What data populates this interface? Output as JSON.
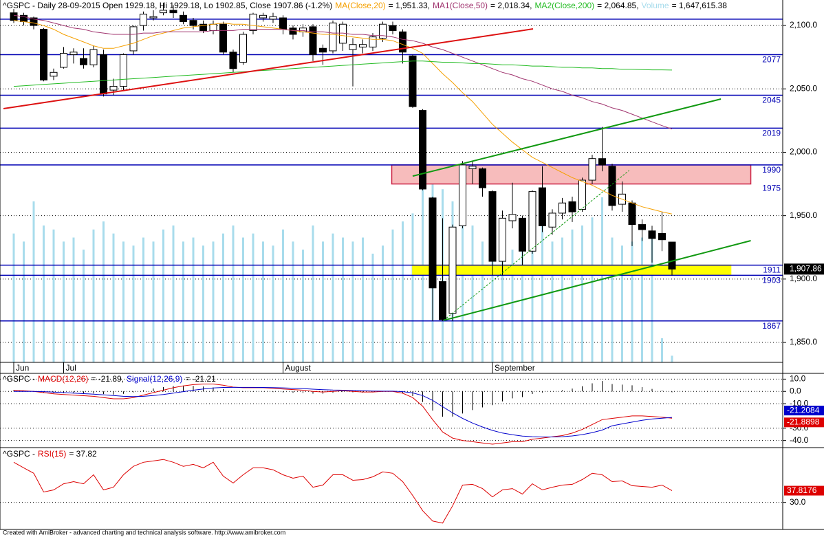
{
  "chart_data": [
    {
      "type": "candlestick",
      "title": "^GSPC - Daily 28-09-2015 Open 1929.18, Hi 1929.18, Lo 1902.85, Close 1907.86 (-1.2%)",
      "categories": [
        "Jun",
        null,
        null,
        null,
        null,
        "Jul",
        null,
        null,
        null,
        null,
        null,
        null,
        null,
        null,
        null,
        null,
        null,
        null,
        null,
        null,
        null,
        null,
        null,
        null,
        null,
        null,
        null,
        "August",
        null,
        null,
        null,
        null,
        null,
        null,
        null,
        null,
        null,
        null,
        null,
        null,
        null,
        null,
        null,
        null,
        null,
        null,
        null,
        null,
        "September",
        null,
        null,
        null,
        null,
        null,
        null,
        null,
        null,
        null,
        null,
        null,
        null,
        null,
        null,
        null,
        null,
        null,
        null
      ],
      "open": [
        2110,
        2108,
        2106,
        2097,
        2060,
        2067,
        2077,
        2074,
        2069,
        2077,
        2049,
        2052,
        2080,
        2100,
        2106,
        2110,
        2112,
        2108,
        2104,
        2101,
        2096,
        2101,
        2079,
        2071,
        2096,
        2106,
        2105,
        2106,
        2098,
        2095,
        2099,
        2082,
        2080,
        2086,
        2081,
        2083,
        2083,
        2090,
        2100,
        2095,
        2076,
        2033,
        1964,
        1898,
        1873,
        1942,
        1987,
        1987,
        1969,
        1914,
        1946,
        1948,
        1922,
        1972,
        1941,
        1952,
        1961,
        1955,
        1978,
        1995,
        1989,
        1959,
        1960,
        1943,
        1938,
        1936,
        1929.18
      ],
      "high": [
        2113,
        2110,
        2107,
        2098,
        2066,
        2083,
        2082,
        2082,
        2084,
        2081,
        2058,
        2078,
        2100,
        2111,
        2112,
        2118,
        2116,
        2111,
        2106,
        2104,
        2104,
        2103,
        2081,
        2095,
        2110,
        2110,
        2110,
        2108,
        2100,
        2101,
        2101,
        2085,
        2104,
        2103,
        2090,
        2089,
        2094,
        2103,
        2103,
        2097,
        2077,
        2034,
        1965,
        1948,
        1943,
        1993,
        1993,
        1988,
        1970,
        1954,
        1976,
        1950,
        1970,
        1989,
        1955,
        1964,
        1965,
        1980,
        1998,
        2020,
        1991,
        1977,
        1962,
        1947,
        1942,
        1953,
        1929.18
      ],
      "low": [
        2102,
        2100,
        2097,
        2056,
        2057,
        2066,
        2070,
        2066,
        2067,
        2044,
        2045,
        2049,
        2077,
        2096,
        2104,
        2108,
        2106,
        2101,
        2097,
        2094,
        2093,
        2077,
        2063,
        2069,
        2093,
        2103,
        2102,
        2093,
        2089,
        2091,
        2072,
        2069,
        2078,
        2080,
        2052,
        2078,
        2080,
        2087,
        2093,
        2070,
        2035,
        1970,
        1867,
        1867,
        1867,
        1940,
        1975,
        1965,
        1903,
        1903,
        1940,
        1911,
        1920,
        1937,
        1935,
        1947,
        1945,
        1953,
        1975,
        1985,
        1954,
        1953,
        1926,
        1930,
        1913,
        1922,
        1902.85
      ],
      "close": [
        2104,
        2103,
        2100,
        2057,
        2063,
        2078,
        2079,
        2069,
        2081,
        2046,
        2052,
        2077,
        2099,
        2109,
        2107,
        2112,
        2110,
        2103,
        2100,
        2096,
        2101,
        2079,
        2066,
        2093,
        2109,
        2108,
        2107,
        2097,
        2093,
        2098,
        2077,
        2079,
        2102,
        2101,
        2085,
        2085,
        2091,
        2101,
        2096,
        2079,
        2036,
        1971,
        1893,
        1868,
        1941,
        1990,
        1989,
        1972,
        1914,
        1948,
        1951,
        1922,
        1969,
        1942,
        1952,
        1960,
        1953,
        1978,
        1995,
        1990,
        1958,
        1967,
        1943,
        1939,
        1932,
        1931,
        1907.86
      ],
      "up_color": "#ffffff",
      "down_color": "#000000",
      "last_label": "1,907.86",
      "ylim": [
        1834.3,
        2120.1
      ],
      "yticks": [
        {
          "value": 1850,
          "label": "1,850.0"
        },
        {
          "value": 1900,
          "label": "1,900.0"
        },
        {
          "value": 1950,
          "label": "1,950.0"
        },
        {
          "value": 2000,
          "label": "2,000.0"
        },
        {
          "value": 2050,
          "label": "2,050.0"
        },
        {
          "value": 2100,
          "label": "2,100.0"
        }
      ],
      "grid": true,
      "series": [
        {
          "name": "MA(Close,20)",
          "legend_value": "= 1,951.33,",
          "color": "#f5a000",
          "values": [
            2104,
            2103,
            2102,
            2100,
            2097,
            2093,
            2090,
            2087,
            2084,
            2082,
            2082,
            2084,
            2086,
            2089,
            2092,
            2094,
            2096,
            2098,
            2099,
            2100,
            2101,
            2102,
            2101,
            2101,
            2100,
            2099,
            2098,
            2097,
            2096,
            2095,
            2094,
            2093,
            2093,
            2092,
            2091,
            2090,
            2089,
            2089,
            2088,
            2085,
            2082,
            2078,
            2070,
            2062,
            2055,
            2047,
            2040,
            2031,
            2022,
            2015,
            2008,
            2002,
            1996,
            1992,
            1988,
            1984,
            1980,
            1977,
            1974,
            1970,
            1966,
            1963,
            1960,
            1957,
            1955,
            1953,
            1951.33
          ]
        },
        {
          "name": "MA1(Close,50)",
          "legend_value": "= 2,018.34,",
          "color": "#a0336e",
          "values": [
            2108,
            2107,
            2105,
            2104,
            2102,
            2100,
            2098,
            2097,
            2095,
            2094,
            2093,
            2093,
            2093,
            2094,
            2094,
            2095,
            2095,
            2095,
            2095,
            2095,
            2096,
            2096,
            2096,
            2097,
            2097,
            2097,
            2097,
            2097,
            2096,
            2096,
            2095,
            2095,
            2094,
            2094,
            2093,
            2093,
            2092,
            2092,
            2091,
            2089,
            2088,
            2086,
            2083,
            2081,
            2078,
            2075,
            2072,
            2069,
            2066,
            2063,
            2061,
            2058,
            2056,
            2053,
            2050,
            2048,
            2045,
            2043,
            2040,
            2038,
            2035,
            2033,
            2030,
            2027,
            2024,
            2021,
            2018.34
          ]
        },
        {
          "name": "MA2(Close,200)",
          "legend_value": "= 2,064.85,",
          "color": "#22bb22",
          "values": [
            2052,
            2052.5,
            2053,
            2053.5,
            2054,
            2054.5,
            2055,
            2055.5,
            2056,
            2056.5,
            2057,
            2057.5,
            2058,
            2058.5,
            2059,
            2059.5,
            2060,
            2060.5,
            2061,
            2061.5,
            2062,
            2062.5,
            2063,
            2063.5,
            2064,
            2064.5,
            2065,
            2065.5,
            2066,
            2066.5,
            2067,
            2067.5,
            2068,
            2068.5,
            2069,
            2069.5,
            2070,
            2070.5,
            2071,
            2071.5,
            2072,
            2072,
            2071.5,
            2071,
            2071,
            2070.5,
            2070,
            2070,
            2069.5,
            2069,
            2069,
            2068.5,
            2068,
            2068,
            2067.5,
            2067,
            2067,
            2066.5,
            2066.5,
            2066,
            2066,
            2065.5,
            2065.5,
            2065.2,
            2065,
            2065,
            2064.85
          ]
        }
      ],
      "volume": {
        "name": "Volume",
        "legend_value": "= 1,647,615.38",
        "color": "#a8dcec",
        "vlim": [
          0,
          90000000
        ],
        "values": [
          32000000,
          30000000,
          40000000,
          34000000,
          33000000,
          30000000,
          31000000,
          28000000,
          33000000,
          35000000,
          32000000,
          30000000,
          29000000,
          31000000,
          30000000,
          33000000,
          34000000,
          30000000,
          31000000,
          29000000,
          30000000,
          32000000,
          34000000,
          31000000,
          32000000,
          30000000,
          29000000,
          33000000,
          30000000,
          28000000,
          34000000,
          30000000,
          32000000,
          31000000,
          30000000,
          31000000,
          27000000,
          29000000,
          33000000,
          35000000,
          37000000,
          44000000,
          47000000,
          43000000,
          40000000,
          38000000,
          34000000,
          30000000,
          36000000,
          31000000,
          28000000,
          30000000,
          32000000,
          34000000,
          30000000,
          31000000,
          33000000,
          34000000,
          36000000,
          41000000,
          31000000,
          29000000,
          30000000,
          31000000,
          32000000,
          6000000,
          1647615.38
        ]
      },
      "level_color": "#0000b4",
      "levels": [
        2077,
        2045,
        2019,
        1990,
        1911,
        1903,
        1867
      ],
      "extra_levels": [
        2105
      ],
      "zones": [
        {
          "from": 1975,
          "to": 1990,
          "start": 37.9,
          "end": 73.9,
          "color": "#f7bcbc",
          "border": "#cc2244"
        },
        {
          "from": 1903,
          "to": 1911,
          "start": 40,
          "end": 71.9,
          "color": "#ffff00",
          "border": "#ffff00"
        }
      ],
      "trendlines": [
        {
          "color": "#dd1111",
          "width": 2,
          "dashed": false,
          "from": [
            -1.03,
            2034.4
          ],
          "to": [
            52.07,
            2097.3
          ]
        },
        {
          "color": "#119911",
          "width": 2,
          "dashed": false,
          "from": [
            40,
            1981.2
          ],
          "to": [
            70.9,
            2042
          ]
        },
        {
          "color": "#119911",
          "width": 2,
          "dashed": false,
          "from": [
            43.1,
            1867.4
          ],
          "to": [
            73.9,
            1930.3
          ]
        },
        {
          "color": "#119911",
          "width": 1,
          "dashed": true,
          "from": [
            43.1,
            1867.4
          ],
          "to": [
            61.7,
            1985.6
          ]
        }
      ]
    },
    {
      "type": "macd",
      "title": "^GSPC -",
      "ylim": [
        -45.8,
        14.7
      ],
      "yticks": [
        {
          "value": 10,
          "label": "10.0"
        },
        {
          "value": 0,
          "label": "0.0"
        },
        {
          "value": -10,
          "label": "-10.0"
        },
        {
          "value": -30,
          "label": "-30.0"
        },
        {
          "value": -40,
          "label": "-40.0"
        }
      ],
      "grid": true,
      "series": [
        {
          "name": "MACD(12,26)",
          "legend_value": "= -21.89,",
          "color": "#dd0000",
          "values": [
            1,
            0.5,
            0,
            -1,
            -2,
            -2.5,
            -3,
            -3.5,
            -4,
            -5,
            -6,
            -6,
            -5,
            -3,
            -1,
            1,
            3,
            4.5,
            5.5,
            6,
            6,
            5,
            3.5,
            3,
            3,
            3,
            2.5,
            2,
            1.5,
            1,
            0,
            -0.5,
            0,
            0.5,
            0,
            -0.5,
            -0.5,
            0,
            0,
            -1.5,
            -5,
            -12,
            -23,
            -33,
            -38,
            -40,
            -41,
            -42,
            -43,
            -42,
            -41,
            -41,
            -39,
            -38,
            -37,
            -36,
            -34,
            -31,
            -27,
            -23,
            -22,
            -21,
            -20,
            -20,
            -20.5,
            -21,
            -21.8898
          ]
        },
        {
          "name": "Signal(12,26,9)",
          "legend_value": "= -21.21",
          "color": "#0000cc",
          "values": [
            0,
            0,
            0,
            -0.2,
            -0.6,
            -1,
            -1.4,
            -1.8,
            -2.3,
            -2.8,
            -3.4,
            -4,
            -4.2,
            -4,
            -3.4,
            -2.5,
            -1.4,
            -0.2,
            1,
            2,
            2.8,
            3.2,
            3.3,
            3.3,
            3.3,
            3.2,
            3.1,
            2.9,
            2.6,
            2.3,
            1.8,
            1.4,
            1.1,
            1,
            0.8,
            0.5,
            0.3,
            0.2,
            0.2,
            -0.2,
            -1.2,
            -3.4,
            -7.3,
            -12.4,
            -17.5,
            -22,
            -25.8,
            -29,
            -31.8,
            -33.9,
            -35.3,
            -36.4,
            -36.9,
            -37.1,
            -37.1,
            -36.9,
            -36.3,
            -35.2,
            -33.6,
            -31.5,
            -28,
            -26.5,
            -25,
            -23.5,
            -22.5,
            -21.8,
            -21.2084
          ]
        }
      ],
      "histogram": {
        "color": "#000000",
        "values": [
          1,
          0.5,
          0,
          -0.8,
          -1.4,
          -1.5,
          -1.6,
          -1.7,
          -1.7,
          -2.2,
          -2.6,
          -2,
          -0.8,
          1,
          2.4,
          3.5,
          4.4,
          4.7,
          4.5,
          4,
          3.2,
          1.8,
          0.2,
          -0.3,
          -0.3,
          -0.2,
          -0.6,
          -0.9,
          -1.1,
          -1.3,
          -1.8,
          -1.9,
          -1.1,
          -0.5,
          -0.8,
          -1,
          -0.8,
          -0.2,
          -0.2,
          -1.3,
          -3.8,
          -8.6,
          -15.7,
          -20.6,
          -20.5,
          -18,
          -15.2,
          -13,
          -11.2,
          -8.1,
          -5.7,
          -4.6,
          -2.1,
          -0.9,
          0.1,
          0.9,
          2.3,
          4.2,
          6.6,
          8.5,
          6,
          5.5,
          5,
          3.5,
          2,
          0.8,
          -0.68
        ]
      }
    },
    {
      "type": "line",
      "title": "^GSPC -",
      "ylim": [
        12,
        66
      ],
      "yticks": [
        {
          "value": 30,
          "label": "30.0"
        }
      ],
      "grid": true,
      "series": [
        {
          "name": "RSI(15)",
          "legend_value": "= 37.82",
          "color": "#dd0000",
          "values": [
            56.7,
            53,
            49.4,
            36.9,
            38.3,
            42.4,
            43.8,
            42.4,
            48.4,
            38.3,
            40.1,
            48.4,
            54,
            56.7,
            57.6,
            58.6,
            56.7,
            54,
            55.3,
            53,
            56.7,
            47.5,
            42.9,
            48.4,
            53,
            53,
            51.7,
            48.4,
            46.1,
            47.5,
            40.1,
            41.5,
            48.4,
            48.4,
            44.7,
            45.2,
            47,
            50.3,
            49.4,
            43.8,
            34.6,
            24.5,
            17.6,
            16.2,
            27.7,
            41.5,
            42,
            39.2,
            33.7,
            38.3,
            39.2,
            35.5,
            42.4,
            38.3,
            40.1,
            41.5,
            42,
            45.2,
            49.4,
            48.4,
            43.8,
            44.3,
            41.1,
            40.6,
            40.1,
            41.5,
            37.8176
          ]
        }
      ]
    }
  ],
  "footer": "Created with AmiBroker - advanced charting and technical analysis software. http://www.amibroker.com"
}
